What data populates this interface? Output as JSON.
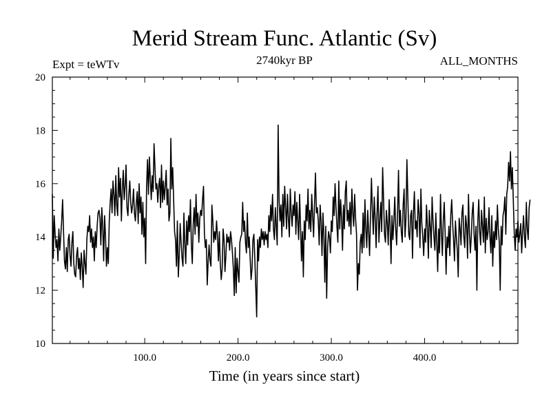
{
  "chart_data": {
    "type": "line",
    "title": "Merid Stream Func. Atlantic (Sv)",
    "subtitle_left": "Expt = teWTv",
    "subtitle_center": "2740kyr BP",
    "subtitle_right": "ALL_MONTHS",
    "xlabel": "Time (in years since start)",
    "ylabel": "",
    "xlim": [
      1,
      500
    ],
    "ylim": [
      10,
      20
    ],
    "xticks": [
      100,
      200,
      300,
      400
    ],
    "xtick_labels": [
      "100.0",
      "200.0",
      "300.0",
      "400.0"
    ],
    "yticks": [
      10,
      12,
      14,
      16,
      18,
      20
    ],
    "ytick_labels": [
      "10",
      "12",
      "14",
      "16",
      "18",
      "20"
    ],
    "line_color": "#000000",
    "grid": false,
    "series": [
      {
        "name": "Merid Stream Func. Atlantic",
        "x_start": 1,
        "x_step": 1,
        "values": [
          15.6,
          13.2,
          14.8,
          14.1,
          13.6,
          13.9,
          13.1,
          14.3,
          13.5,
          14.0,
          14.6,
          15.4,
          14.2,
          13.1,
          12.8,
          13.6,
          12.7,
          13.9,
          14.1,
          13.3,
          12.9,
          13.8,
          14.2,
          13.0,
          12.6,
          12.5,
          13.3,
          13.6,
          12.8,
          13.2,
          12.4,
          13.4,
          12.9,
          12.1,
          13.5,
          13.0,
          12.6,
          13.9,
          14.4,
          14.2,
          14.8,
          13.8,
          14.3,
          13.6,
          14.0,
          13.1,
          14.2,
          13.6,
          14.4,
          14.9,
          15.0,
          14.7,
          13.7,
          15.1,
          14.4,
          13.1,
          14.8,
          14.0,
          12.9,
          13.6,
          13.0,
          14.6,
          15.3,
          15.8,
          14.9,
          16.1,
          15.6,
          14.8,
          16.3,
          15.2,
          14.8,
          16.6,
          15.5,
          16.2,
          14.6,
          15.8,
          16.5,
          15.4,
          15.9,
          16.7,
          15.1,
          14.8,
          15.6,
          16.1,
          15.3,
          14.9,
          15.2,
          15.8,
          14.9,
          14.6,
          15.3,
          15.7,
          14.5,
          16.0,
          14.9,
          15.5,
          14.1,
          15.3,
          14.0,
          14.7,
          13.0,
          15.9,
          16.9,
          15.6,
          17.0,
          16.2,
          15.4,
          16.3,
          15.7,
          17.5,
          16.6,
          15.8,
          16.0,
          15.3,
          15.9,
          16.2,
          15.1,
          16.7,
          15.3,
          16.1,
          15.4,
          15.9,
          16.5,
          15.2,
          15.8,
          14.6,
          14.9,
          17.7,
          15.8,
          16.6,
          15.4,
          14.2,
          13.9,
          12.9,
          14.6,
          12.5,
          13.3,
          14.5,
          13.8,
          13.2,
          12.9,
          14.9,
          13.7,
          13.0,
          14.6,
          13.7,
          14.8,
          14.2,
          15.4,
          13.7,
          13.0,
          14.5,
          15.1,
          14.1,
          15.6,
          14.4,
          14.9,
          13.8,
          14.7,
          15.0,
          14.8,
          15.4,
          15.9,
          14.1,
          13.6,
          13.9,
          12.2,
          13.1,
          13.7,
          13.1,
          12.9,
          15.2,
          14.6,
          13.8,
          14.2,
          13.9,
          14.6,
          14.0,
          13.1,
          14.2,
          13.0,
          12.4,
          12.8,
          14.3,
          13.9,
          12.7,
          13.3,
          14.1,
          13.8,
          14.0,
          13.5,
          14.2,
          13.9,
          13.4,
          12.8,
          11.8,
          13.6,
          11.9,
          13.2,
          12.7,
          12.3,
          13.8,
          14.0,
          14.1,
          15.3,
          14.2,
          14.6,
          13.8,
          13.4,
          14.9,
          13.6,
          14.0,
          13.2,
          12.4,
          12.8,
          13.9,
          14.1,
          13.2,
          12.1,
          11.0,
          13.9,
          13.1,
          14.0,
          13.6,
          14.3,
          13.9,
          14.2,
          13.7,
          14.2,
          13.9,
          14.1,
          13.6,
          14.8,
          14.2,
          15.2,
          14.6,
          15.6,
          14.3,
          13.9,
          15.1,
          14.4,
          13.7,
          18.2,
          15.4,
          14.6,
          15.2,
          14.0,
          15.6,
          14.4,
          15.9,
          15.1,
          14.3,
          15.6,
          14.7,
          14.0,
          15.8,
          14.9,
          14.4,
          15.2,
          14.8,
          15.7,
          14.1,
          15.3,
          14.6,
          13.9,
          15.6,
          14.4,
          13.1,
          14.2,
          12.5,
          14.6,
          13.9,
          15.2,
          14.6,
          15.8,
          14.3,
          15.0,
          14.2,
          15.6,
          14.8,
          14.0,
          15.3,
          16.4,
          14.9,
          15.1,
          14.6,
          13.7,
          15.2,
          14.6,
          13.3,
          14.9,
          14.1,
          12.3,
          14.4,
          11.7,
          13.6,
          14.2,
          14.0,
          13.4,
          14.6,
          14.2,
          15.5,
          14.8,
          16.0,
          15.1,
          14.4,
          13.8,
          16.1,
          14.3,
          15.4,
          14.7,
          13.5,
          15.2,
          14.3,
          15.7,
          16.1,
          14.6,
          15.0,
          14.4,
          15.3,
          14.1,
          15.8,
          14.9,
          14.4,
          15.6,
          14.7,
          14.1,
          12.0,
          13.0,
          12.6,
          13.8,
          14.1,
          13.4,
          14.9,
          13.6,
          15.4,
          14.3,
          13.6,
          15.0,
          14.2,
          13.3,
          14.8,
          16.2,
          15.0,
          14.1,
          15.5,
          14.7,
          13.6,
          14.9,
          15.9,
          13.8,
          14.6,
          15.3,
          14.2,
          16.6,
          15.4,
          14.1,
          13.8,
          15.0,
          14.5,
          13.7,
          15.4,
          14.4,
          13.0,
          14.8,
          13.9,
          14.6,
          15.5,
          14.3,
          13.7,
          14.9,
          16.5,
          14.4,
          15.0,
          14.2,
          13.8,
          15.2,
          15.8,
          14.0,
          14.7,
          16.9,
          15.5,
          14.1,
          13.9,
          14.8,
          15.0,
          13.2,
          14.9,
          15.7,
          14.3,
          14.6,
          14.0,
          15.4,
          14.9,
          13.6,
          15.8,
          14.5,
          14.0,
          13.3,
          14.3,
          13.8,
          15.2,
          14.4,
          13.2,
          15.0,
          14.4,
          13.6,
          15.5,
          14.6,
          14.0,
          13.5,
          14.9,
          13.8,
          12.7,
          14.3,
          13.4,
          15.6,
          14.2,
          13.3,
          14.6,
          15.3,
          14.1,
          12.6,
          14.0,
          13.6,
          14.4,
          13.3,
          14.8,
          15.4,
          14.5,
          13.9,
          13.1,
          14.6,
          14.0,
          13.5,
          12.5,
          14.7,
          14.3,
          13.7,
          14.9,
          15.2,
          14.0,
          13.6,
          14.8,
          14.4,
          13.2,
          15.6,
          14.2,
          13.4,
          14.0,
          14.9,
          15.3,
          14.1,
          13.5,
          14.4,
          12.0,
          14.6,
          15.4,
          14.2,
          13.7,
          15.0,
          14.4,
          13.8,
          15.5,
          13.4,
          14.7,
          13.9,
          14.2,
          15.1,
          14.0,
          13.4,
          14.8,
          12.9,
          14.2,
          13.6,
          14.6,
          13.9,
          15.2,
          14.3,
          13.8,
          12.0,
          14.4,
          13.7,
          14.8,
          15.0,
          15.5,
          14.1,
          15.6,
          15.9,
          16.8,
          16.1,
          17.2,
          15.8,
          16.6,
          15.4,
          14.2,
          13.5,
          14.3,
          14.0,
          14.6,
          13.8,
          14.1,
          14.5,
          13.4,
          14.2,
          14.8,
          14.0,
          13.6,
          15.3,
          14.3,
          13.9,
          15.1,
          15.4
        ]
      }
    ]
  }
}
